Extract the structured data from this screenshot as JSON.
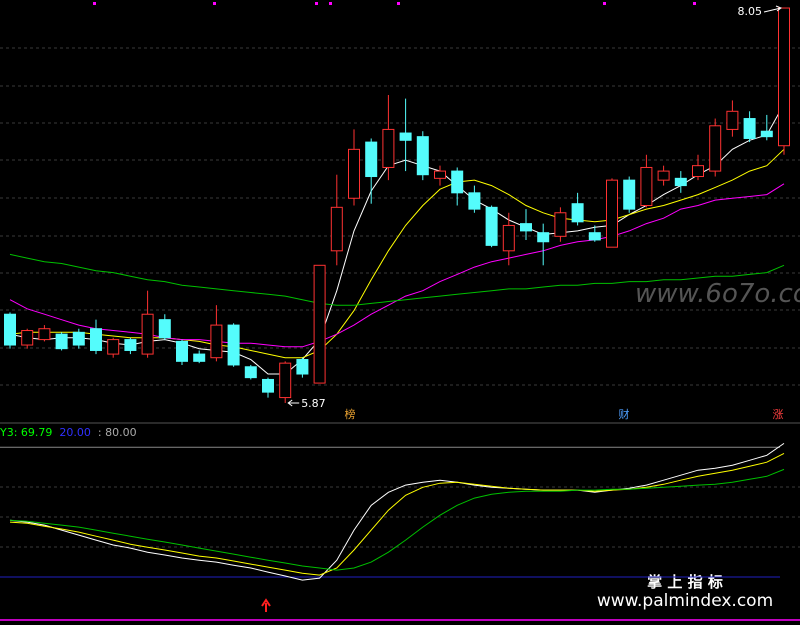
{
  "chart_data": [
    {
      "type": "candlestick",
      "open": [
        6.36,
        6.19,
        6.22,
        6.25,
        6.26,
        6.28,
        6.14,
        6.22,
        6.14,
        6.33,
        6.21,
        6.14,
        6.12,
        6.3,
        6.07,
        6.0,
        5.9,
        6.11,
        5.98,
        6.71,
        7.0,
        7.31,
        7.17,
        7.36,
        7.34,
        7.11,
        7.15,
        7.03,
        6.95,
        6.71,
        6.86,
        6.81,
        6.79,
        6.97,
        6.81,
        6.73,
        7.1,
        6.96,
        7.1,
        7.11,
        7.12,
        7.15,
        7.38,
        7.44,
        7.37,
        7.29
      ],
      "close": [
        6.19,
        6.27,
        6.28,
        6.17,
        6.19,
        6.16,
        6.22,
        6.16,
        6.36,
        6.23,
        6.1,
        6.1,
        6.3,
        6.08,
        6.01,
        5.93,
        6.09,
        6.03,
        6.63,
        6.95,
        7.27,
        7.12,
        7.38,
        7.32,
        7.13,
        7.15,
        7.03,
        6.94,
        6.74,
        6.85,
        6.82,
        6.76,
        6.92,
        6.87,
        6.77,
        7.1,
        6.94,
        7.17,
        7.15,
        7.07,
        7.18,
        7.4,
        7.48,
        7.33,
        7.34,
        8.05
      ],
      "high": [
        6.37,
        6.28,
        6.3,
        6.26,
        6.28,
        6.33,
        6.23,
        6.23,
        6.49,
        6.36,
        6.22,
        6.16,
        6.41,
        6.31,
        6.08,
        6.01,
        6.1,
        6.12,
        6.63,
        7.13,
        7.38,
        7.33,
        7.57,
        7.55,
        7.37,
        7.18,
        7.17,
        7.07,
        6.96,
        6.92,
        6.94,
        6.86,
        6.95,
        7.03,
        6.85,
        7.11,
        7.12,
        7.24,
        7.18,
        7.15,
        7.24,
        7.44,
        7.54,
        7.48,
        7.46,
        8.05
      ],
      "low": [
        6.17,
        6.17,
        6.21,
        6.16,
        6.17,
        6.14,
        6.12,
        6.14,
        6.12,
        6.22,
        6.08,
        6.09,
        6.1,
        6.07,
        6.0,
        5.9,
        5.87,
        6.01,
        5.98,
        6.63,
        6.96,
        6.97,
        7.1,
        7.15,
        7.1,
        7.07,
        6.96,
        6.92,
        6.73,
        6.63,
        6.77,
        6.63,
        6.76,
        6.85,
        6.76,
        6.73,
        6.92,
        6.95,
        7.07,
        7.03,
        7.1,
        7.12,
        7.34,
        7.31,
        7.32,
        7.24
      ],
      "up_color": "#ff3232",
      "down_color": "#54fcfc",
      "series": [
        {
          "color": "#ffffff",
          "values": [
            6.25,
            6.23,
            6.22,
            6.23,
            6.23,
            6.22,
            6.2,
            6.19,
            6.21,
            6.22,
            6.2,
            6.17,
            6.16,
            6.15,
            6.11,
            6.03,
            6.03,
            6.11,
            6.22,
            6.49,
            6.82,
            7.04,
            7.18,
            7.21,
            7.18,
            7.15,
            7.07,
            6.99,
            6.94,
            6.88,
            6.84,
            6.8,
            6.81,
            6.82,
            6.84,
            6.85,
            6.91,
            6.96,
            7.02,
            7.07,
            7.13,
            7.18,
            7.27,
            7.32,
            7.35,
            7.52
          ]
        },
        {
          "color": "#ffff00",
          "values": [
            6.25,
            6.26,
            6.26,
            6.26,
            6.26,
            6.25,
            6.24,
            6.23,
            6.23,
            6.23,
            6.22,
            6.21,
            6.19,
            6.18,
            6.16,
            6.14,
            6.12,
            6.12,
            6.16,
            6.25,
            6.38,
            6.55,
            6.71,
            6.85,
            6.96,
            7.05,
            7.09,
            7.1,
            7.07,
            7.02,
            6.96,
            6.92,
            6.89,
            6.88,
            6.87,
            6.88,
            6.91,
            6.94,
            6.96,
            6.99,
            7.02,
            7.06,
            7.1,
            7.15,
            7.18,
            7.27
          ]
        },
        {
          "color": "#ff00ff",
          "values": [
            6.44,
            6.39,
            6.36,
            6.33,
            6.3,
            6.28,
            6.27,
            6.26,
            6.25,
            6.23,
            6.22,
            6.22,
            6.21,
            6.2,
            6.2,
            6.19,
            6.18,
            6.18,
            6.21,
            6.25,
            6.3,
            6.36,
            6.41,
            6.46,
            6.49,
            6.54,
            6.58,
            6.62,
            6.65,
            6.67,
            6.69,
            6.71,
            6.74,
            6.76,
            6.77,
            6.79,
            6.82,
            6.86,
            6.89,
            6.94,
            6.96,
            6.99,
            7.0,
            7.01,
            7.02,
            7.08
          ]
        },
        {
          "color": "#00c000",
          "values": [
            6.69,
            6.67,
            6.65,
            6.64,
            6.62,
            6.6,
            6.59,
            6.57,
            6.55,
            6.54,
            6.52,
            6.51,
            6.5,
            6.49,
            6.48,
            6.47,
            6.46,
            6.44,
            6.42,
            6.41,
            6.41,
            6.42,
            6.43,
            6.44,
            6.45,
            6.46,
            6.47,
            6.48,
            6.49,
            6.5,
            6.5,
            6.51,
            6.52,
            6.52,
            6.53,
            6.53,
            6.54,
            6.54,
            6.55,
            6.55,
            6.56,
            6.57,
            6.57,
            6.58,
            6.59,
            6.63
          ]
        }
      ],
      "annotations": [
        {
          "label": "8.05",
          "value": 8.05
        },
        {
          "label": "5.87",
          "value": 5.87
        }
      ],
      "ylim": [
        5.79,
        8.07
      ]
    },
    {
      "type": "line",
      "legend": [
        {
          "label": "Y3: 69.79",
          "color": "#00ff00"
        },
        {
          "label": "20.00",
          "color": "#3030ff"
        },
        {
          "label": ": 80.00",
          "color": "#aaaaaa"
        }
      ],
      "hlines": [
        {
          "value": 20,
          "color": "#2020c0"
        },
        {
          "value": 80,
          "color": "#888888"
        }
      ],
      "series": [
        {
          "color": "#ffffff",
          "values": [
            46.3,
            45.4,
            44.0,
            41.7,
            39.4,
            37.1,
            34.8,
            33.4,
            31.5,
            30.2,
            28.8,
            27.8,
            26.9,
            25.5,
            24.2,
            22.3,
            20.5,
            18.6,
            19.5,
            27.8,
            41.7,
            53.2,
            59.2,
            62.5,
            63.8,
            64.8,
            63.8,
            62.5,
            61.5,
            61.1,
            60.6,
            60.2,
            60.2,
            60.2,
            59.2,
            60.2,
            61.1,
            62.5,
            64.8,
            67.1,
            69.4,
            70.3,
            71.7,
            74.0,
            76.3,
            81.8
          ]
        },
        {
          "color": "#ffff00",
          "values": [
            45.4,
            44.9,
            43.5,
            42.2,
            40.8,
            38.9,
            37.1,
            35.2,
            33.8,
            32.5,
            31.1,
            29.7,
            28.8,
            27.4,
            26.0,
            24.6,
            23.2,
            21.8,
            20.9,
            24.2,
            32.5,
            41.7,
            50.9,
            57.8,
            61.5,
            63.4,
            63.8,
            62.9,
            62.0,
            61.1,
            60.6,
            60.2,
            60.2,
            60.2,
            59.7,
            60.2,
            60.6,
            61.5,
            62.9,
            64.8,
            66.6,
            68.0,
            69.4,
            71.2,
            73.1,
            77.2
          ]
        },
        {
          "color": "#00c000",
          "values": [
            46.3,
            45.8,
            44.9,
            44.0,
            43.1,
            41.7,
            40.3,
            38.9,
            37.5,
            36.2,
            34.8,
            33.4,
            32.0,
            30.6,
            29.2,
            27.8,
            26.5,
            25.1,
            24.2,
            23.2,
            24.2,
            26.9,
            31.5,
            37.1,
            43.1,
            48.6,
            53.2,
            56.5,
            58.3,
            59.2,
            59.7,
            59.7,
            59.7,
            60.2,
            60.2,
            60.6,
            60.6,
            61.1,
            61.5,
            62.0,
            62.5,
            62.9,
            63.8,
            65.2,
            66.6,
            69.79
          ]
        }
      ],
      "ylim": [
        0,
        88
      ]
    }
  ],
  "markers": [
    "榜",
    "财",
    "涨"
  ],
  "watermarks": [
    "www.6o7o.com",
    "掌 上 指 标",
    "www.palmindex.com"
  ]
}
